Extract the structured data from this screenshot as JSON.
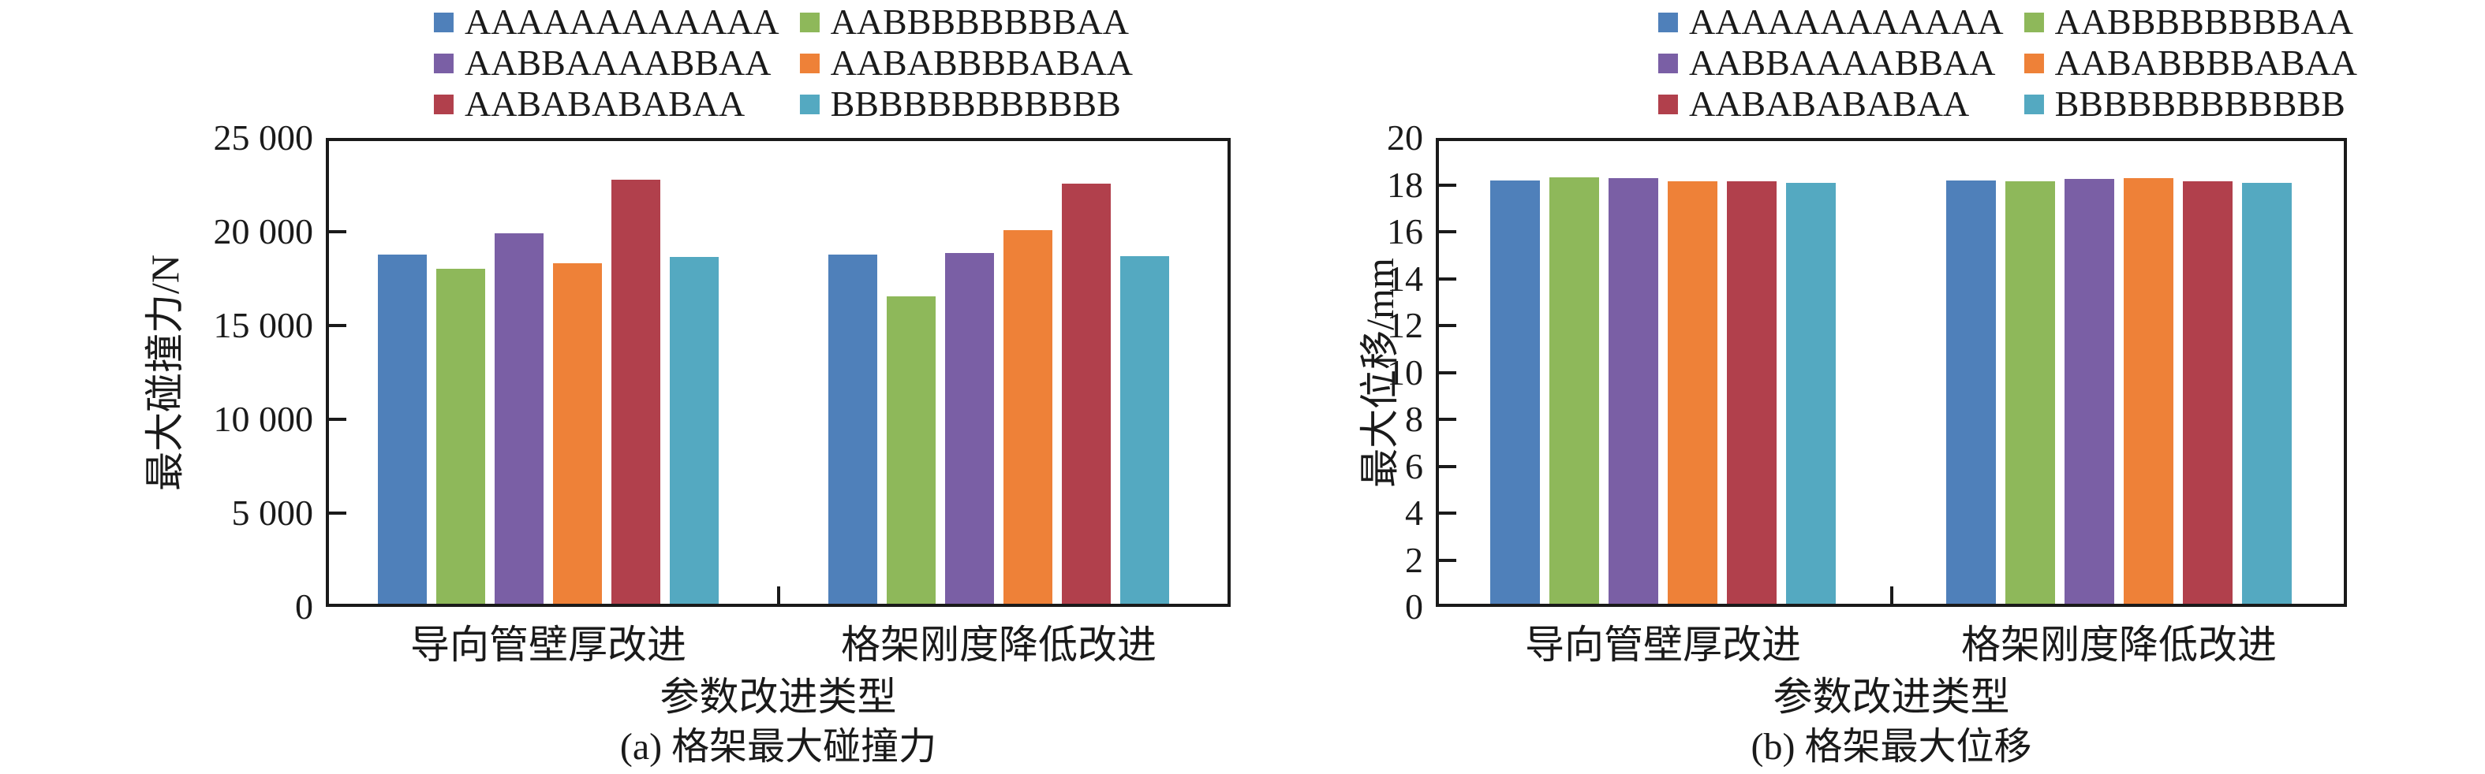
{
  "figure": {
    "background": "#ffffff",
    "text_color": "#1a1a1a"
  },
  "chart_data": [
    {
      "type": "bar",
      "panel": "a",
      "caption": "(a) 格架最大碰撞力",
      "xlabel": "参数改进类型",
      "ylabel": "最大碰撞力/N",
      "categories": [
        "导向管壁厚改进",
        "格架刚度降低改进"
      ],
      "ylim": [
        0,
        25000
      ],
      "y_tick_values": [
        0,
        5000,
        10000,
        15000,
        20000,
        25000
      ],
      "y_tick_labels": [
        "0",
        "5 000",
        "10 000",
        "15 000",
        "20 000",
        "25 000"
      ],
      "grid": false,
      "legend_position": "above-plot, 2 columns",
      "series": [
        {
          "name": "AAAAAAAAAAAA",
          "color": "#4F80BA",
          "values": [
            18850,
            18850
          ]
        },
        {
          "name": "AABBBBBBBBAA",
          "color": "#8EB85A",
          "values": [
            18100,
            16600
          ]
        },
        {
          "name": "AABBAAAABBAA",
          "color": "#7A5FA5",
          "values": [
            20000,
            18950
          ]
        },
        {
          "name": "AABABBBBABAA",
          "color": "#EE8138",
          "values": [
            18400,
            20200
          ]
        },
        {
          "name": "AABABABABAA",
          "color": "#B1404C",
          "values": [
            22900,
            22700
          ]
        },
        {
          "name": "BBBBBBBBBBBB",
          "color": "#54A9C1",
          "values": [
            18750,
            18800
          ]
        }
      ]
    },
    {
      "type": "bar",
      "panel": "b",
      "caption": "(b) 格架最大位移",
      "xlabel": "参数改进类型",
      "ylabel": "最大位移/mm",
      "categories": [
        "导向管壁厚改进",
        "格架刚度降低改进"
      ],
      "ylim": [
        0,
        20
      ],
      "y_tick_values": [
        0,
        2,
        4,
        6,
        8,
        10,
        12,
        14,
        16,
        18,
        20
      ],
      "y_tick_labels": [
        "0",
        "2",
        "4",
        "6",
        "8",
        "10",
        "12",
        "14",
        "16",
        "18",
        "20"
      ],
      "grid": false,
      "legend_position": "above-plot, 2 columns",
      "series": [
        {
          "name": "AAAAAAAAAAAA",
          "color": "#4F80BA",
          "values": [
            18.3,
            18.3
          ]
        },
        {
          "name": "AABBBBBBBBAA",
          "color": "#8EB85A",
          "values": [
            18.45,
            18.25
          ]
        },
        {
          "name": "AABBAAAABBAA",
          "color": "#7A5FA5",
          "values": [
            18.4,
            18.35
          ]
        },
        {
          "name": "AABABBBBABAA",
          "color": "#EE8138",
          "values": [
            18.25,
            18.4
          ]
        },
        {
          "name": "AABABABABAA",
          "color": "#B1404C",
          "values": [
            18.25,
            18.25
          ]
        },
        {
          "name": "BBBBBBBBBBBB",
          "color": "#54A9C1",
          "values": [
            18.2,
            18.2
          ]
        }
      ]
    }
  ]
}
